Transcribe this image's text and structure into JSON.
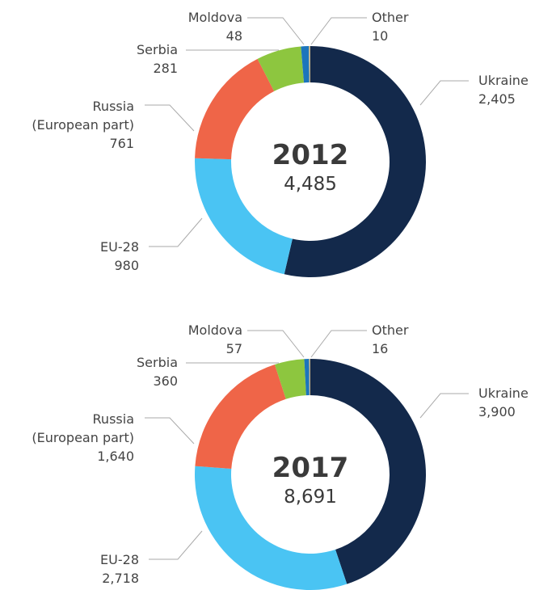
{
  "chart_data": [
    {
      "type": "pie",
      "title": "2012",
      "total": 4485,
      "total_label": "4,485",
      "categories": [
        "Ukraine",
        "EU-28",
        "Russia\n(European part)",
        "Serbia",
        "Moldova",
        "Other"
      ],
      "values": [
        2405,
        980,
        761,
        281,
        48,
        10
      ],
      "value_labels": [
        "2,405",
        "980",
        "761",
        "281",
        "48",
        "10"
      ],
      "colors": [
        "#13294b",
        "#4ac4f3",
        "#ef6548",
        "#8dc63f",
        "#1c75bc",
        "#c4b48a"
      ]
    },
    {
      "type": "pie",
      "title": "2017",
      "total": 8691,
      "total_label": "8,691",
      "categories": [
        "Ukraine",
        "EU-28",
        "Russia\n(European part)",
        "Serbia",
        "Moldova",
        "Other"
      ],
      "values": [
        3900,
        2718,
        1640,
        360,
        57,
        16
      ],
      "value_labels": [
        "3,900",
        "2,718",
        "1,640",
        "360",
        "57",
        "16"
      ],
      "colors": [
        "#13294b",
        "#4ac4f3",
        "#ef6548",
        "#8dc63f",
        "#1c75bc",
        "#c4b48a"
      ]
    }
  ]
}
